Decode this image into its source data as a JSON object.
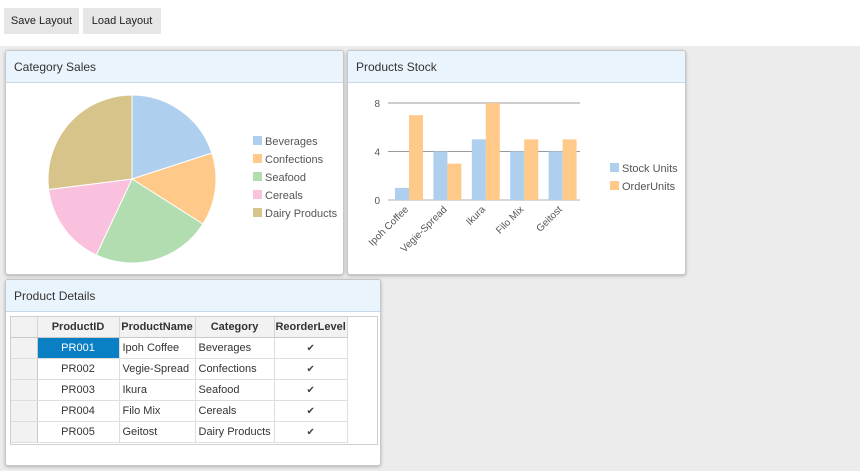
{
  "toolbar": {
    "save_label": "Save Layout",
    "load_label": "Load Layout"
  },
  "tiles": {
    "category_sales": {
      "title": "Category Sales"
    },
    "products_stock": {
      "title": "Products Stock"
    },
    "product_details": {
      "title": "Product Details"
    }
  },
  "chart_data": [
    {
      "type": "pie",
      "title": "Category Sales",
      "categories": [
        "Beverages",
        "Confections",
        "Seafood",
        "Cereals",
        "Dairy Products"
      ],
      "values": [
        20,
        14,
        23,
        16,
        27
      ],
      "colors": [
        "#aed0ee",
        "#ffc98a",
        "#b2ddb0",
        "#f9c1dd",
        "#d6c48a"
      ],
      "legend": "right"
    },
    {
      "type": "bar",
      "title": "Products Stock",
      "categories": [
        "Ipoh Coffee",
        "Vegie-Spread",
        "Ikura",
        "Filo Mix",
        "Geitost"
      ],
      "series": [
        {
          "name": "Stock Units",
          "values": [
            1,
            4,
            5,
            4,
            4
          ],
          "color": "#aed0ee"
        },
        {
          "name": "OrderUnits",
          "values": [
            7,
            3,
            8,
            5,
            5
          ],
          "color": "#ffc98a"
        }
      ],
      "ylim": [
        0,
        8
      ],
      "yticks": [
        0,
        4,
        8
      ],
      "grid": true,
      "legend": "right"
    }
  ],
  "table": {
    "columns": [
      "ProductID",
      "ProductName",
      "Category",
      "ReorderLevel"
    ],
    "rows": [
      {
        "id": "PR001",
        "name": "Ipoh Coffee",
        "category": "Beverages",
        "reorder": true
      },
      {
        "id": "PR002",
        "name": "Vegie-Spread",
        "category": "Confections",
        "reorder": true
      },
      {
        "id": "PR003",
        "name": "Ikura",
        "category": "Seafood",
        "reorder": true
      },
      {
        "id": "PR004",
        "name": "Filo Mix",
        "category": "Cereals",
        "reorder": true
      },
      {
        "id": "PR005",
        "name": "Geitost",
        "category": "Dairy Products",
        "reorder": true
      }
    ]
  }
}
